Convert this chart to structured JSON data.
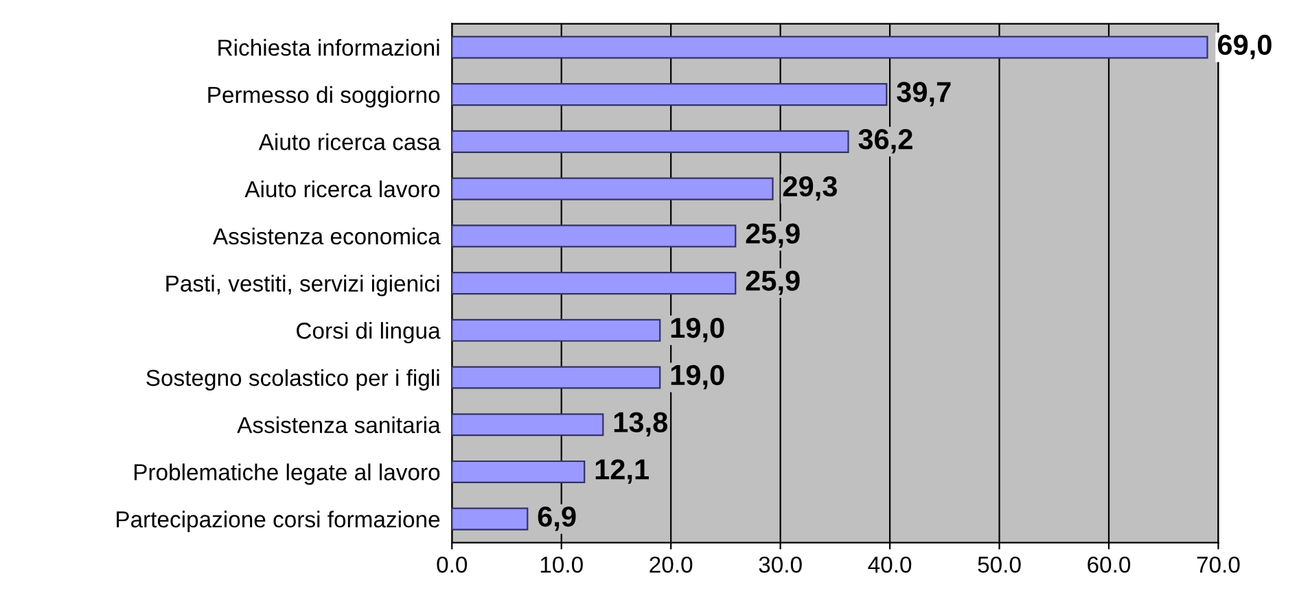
{
  "chart_data": {
    "type": "bar",
    "orientation": "horizontal",
    "categories": [
      "Richiesta informazioni",
      "Permesso di soggiorno",
      "Aiuto ricerca casa",
      "Aiuto ricerca lavoro",
      "Assistenza economica",
      "Pasti, vestiti, servizi igienici",
      "Corsi di lingua",
      "Sostegno scolastico per i figli",
      "Assistenza sanitaria",
      "Problematiche legate al lavoro",
      "Partecipazione corsi formazione"
    ],
    "values": [
      69.0,
      39.7,
      36.2,
      29.3,
      25.9,
      25.9,
      19.0,
      19.0,
      13.8,
      12.1,
      6.9
    ],
    "value_labels": [
      "69,0",
      "39,7",
      "36,2",
      "29,3",
      "25,9",
      "25,9",
      "19,0",
      "19,0",
      "13,8",
      "12,1",
      "6,9"
    ],
    "color": "#9999ff",
    "xlim": [
      0,
      70
    ],
    "xticks": [
      {
        "value": 0,
        "label": "0.0"
      },
      {
        "value": 10,
        "label": "10.0"
      },
      {
        "value": 20,
        "label": "20.0"
      },
      {
        "value": 30,
        "label": "30.0"
      },
      {
        "value": 40,
        "label": "40.0"
      },
      {
        "value": 50,
        "label": "50.0"
      },
      {
        "value": 60,
        "label": "60.0"
      },
      {
        "value": 70,
        "label": "70.0"
      }
    ],
    "grid": "x",
    "legend": false
  }
}
